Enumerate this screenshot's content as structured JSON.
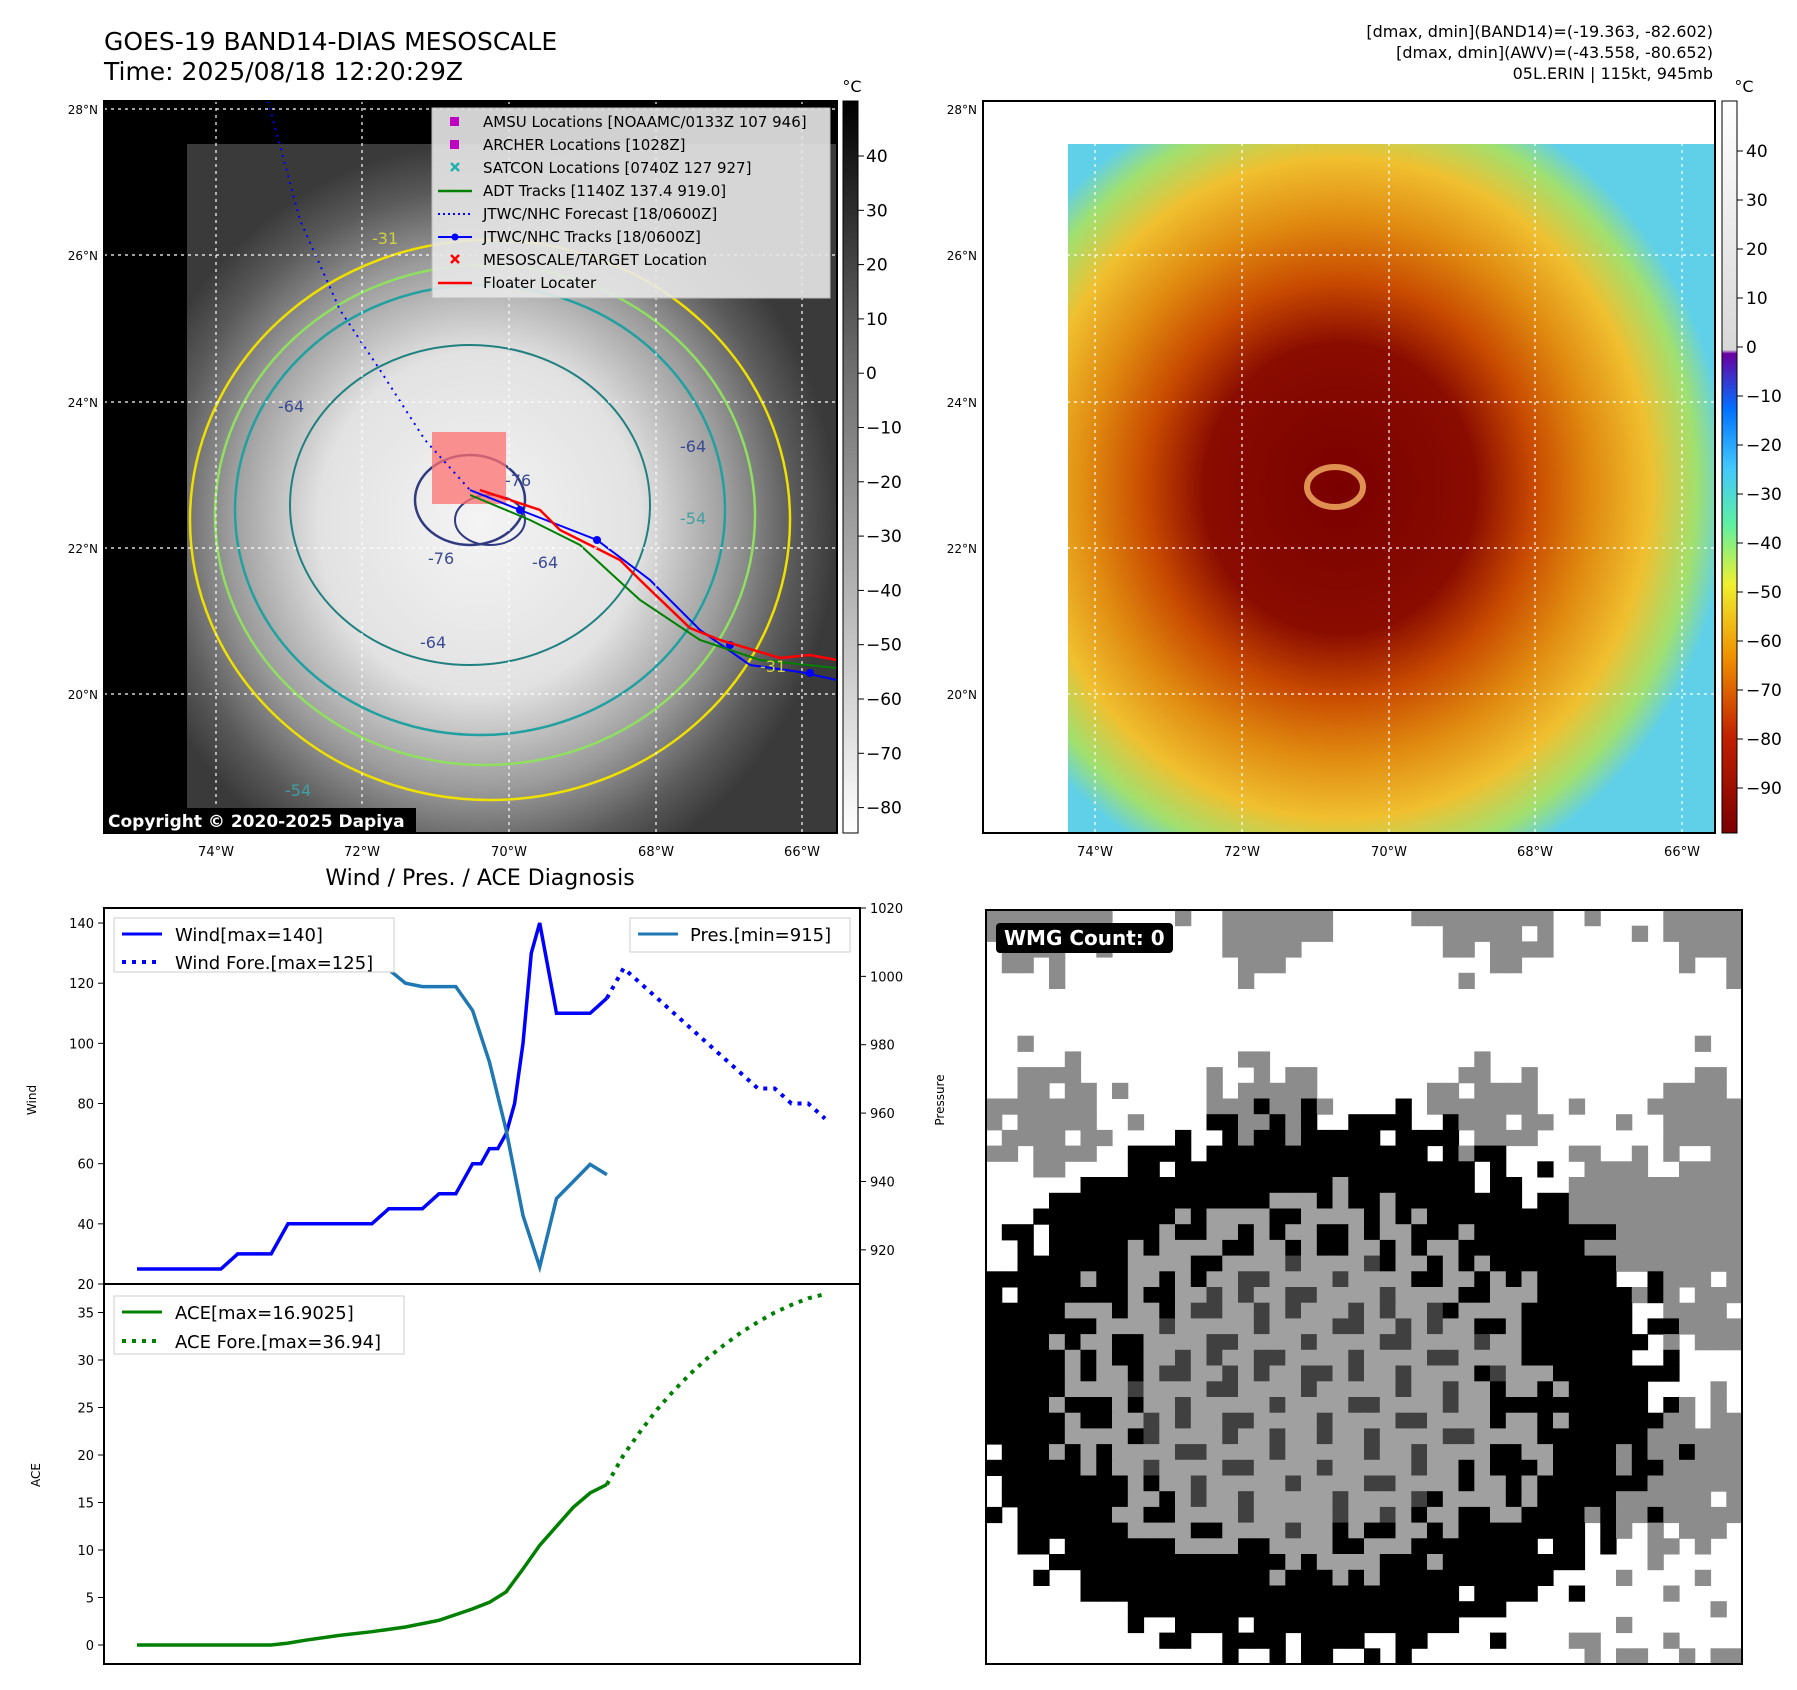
{
  "header": {
    "title": "GOES-19 BAND14-DIAS MESOSCALE",
    "time": "Time: 2025/08/18 12:20:29Z",
    "dmax_band14": "[dmax, dmin](BAND14)=(-19.363, -82.602)",
    "dmax_awv": "[dmax, dmin](AWV)=(-43.558, -80.652)",
    "storm": "05L.ERIN | 115kt, 945mb"
  },
  "map_left": {
    "copyright": "Copyright © 2020-2025 Dapiya",
    "lat_labels": [
      "28°N",
      "26°N",
      "24°N",
      "22°N",
      "20°N"
    ],
    "lon_labels": [
      "74°W",
      "72°W",
      "70°W",
      "68°W",
      "66°W"
    ],
    "contour_labels": [
      "-31",
      "-64",
      "-76",
      "-64",
      "-54",
      "-64",
      "-76",
      "-64",
      "-54",
      "-31"
    ],
    "legend": [
      {
        "label": "AMSU Locations [NOAAMC/0133Z 107 946]",
        "color": "#c000c0",
        "kind": "square"
      },
      {
        "label": "ARCHER Locations [1028Z]",
        "color": "#c000c0",
        "kind": "square"
      },
      {
        "label": "SATCON Locations [0740Z 127 927]",
        "color": "#20b0b0",
        "kind": "x"
      },
      {
        "label": "ADT Tracks [1140Z 137.4 919.0]",
        "color": "#008000",
        "kind": "line"
      },
      {
        "label": "JTWC/NHC Forecast [18/0600Z]",
        "color": "#0000ff",
        "kind": "dotted"
      },
      {
        "label": "JTWC/NHC Tracks [18/0600Z]",
        "color": "#0000ff",
        "kind": "linedot"
      },
      {
        "label": "MESOSCALE/TARGET Location",
        "color": "#ff0000",
        "kind": "x"
      },
      {
        "label": "Floater Locater",
        "color": "#ff0000",
        "kind": "line"
      }
    ],
    "colorbar": {
      "unit": "°C",
      "ticks": [
        "40",
        "30",
        "20",
        "10",
        "0",
        "−10",
        "−20",
        "−30",
        "−40",
        "−50",
        "−60",
        "−70",
        "−80"
      ]
    }
  },
  "map_right": {
    "lat_labels": [
      "28°N",
      "26°N",
      "24°N",
      "22°N",
      "20°N"
    ],
    "lon_labels": [
      "74°W",
      "72°W",
      "70°W",
      "68°W",
      "66°W"
    ],
    "colorbar": {
      "unit": "°C",
      "ticks": [
        "40",
        "30",
        "20",
        "10",
        "0",
        "−10",
        "−20",
        "−30",
        "−40",
        "−50",
        "−60",
        "−70",
        "−80",
        "−90"
      ]
    }
  },
  "wind_panel": {
    "title": "Wind / Pres. / ACE Diagnosis",
    "wind_ylabel": "Wind",
    "pres_ylabel": "Pressure",
    "ace_ylabel": "ACE",
    "legend_wind": "Wind[max=140]",
    "legend_wind_fore": "Wind Fore.[max=125]",
    "legend_pres": "Pres.[min=915]",
    "legend_ace": "ACE[max=16.9025]",
    "legend_ace_fore": "ACE Fore.[max=36.94]",
    "wind_ticks": [
      "140",
      "120",
      "100",
      "80",
      "60",
      "40",
      "20"
    ],
    "pres_ticks": [
      "1020",
      "1000",
      "980",
      "960",
      "940",
      "920"
    ],
    "ace_ticks": [
      "35",
      "30",
      "25",
      "20",
      "15",
      "10",
      "5",
      "0"
    ]
  },
  "wmg": {
    "badge": "WMG Count: 0"
  },
  "chart_data": [
    {
      "type": "line",
      "title": "Wind / Pres. / ACE Diagnosis",
      "ylabel": "Wind",
      "ylim": [
        20,
        145
      ],
      "series": [
        {
          "name": "Wind[max=140]",
          "style": "solid",
          "color": "#0000ff",
          "x": [
            0,
            2,
            3,
            4,
            5,
            6,
            7,
            8,
            9,
            10,
            11,
            12,
            13,
            14,
            15,
            16,
            17,
            18,
            19,
            20,
            20.5,
            21,
            21.5,
            22,
            22.5,
            23,
            23.5,
            24,
            25,
            26,
            27,
            28
          ],
          "y": [
            25,
            25,
            25,
            25,
            25,
            30,
            30,
            30,
            40,
            40,
            40,
            40,
            40,
            40,
            45,
            45,
            45,
            50,
            50,
            60,
            60,
            65,
            65,
            70,
            80,
            100,
            130,
            140,
            110,
            110,
            110,
            115
          ]
        },
        {
          "name": "Wind Fore.[max=125]",
          "style": "dotted",
          "color": "#0000ff",
          "x": [
            28,
            29,
            30,
            31,
            32,
            33,
            34,
            35,
            36,
            37,
            38,
            39,
            40,
            41
          ],
          "y": [
            115,
            125,
            120,
            115,
            110,
            105,
            100,
            95,
            90,
            85,
            85,
            80,
            80,
            75
          ]
        }
      ]
    },
    {
      "type": "line",
      "ylabel": "Pressure",
      "ylim": [
        910,
        1020
      ],
      "series": [
        {
          "name": "Pres.[min=915]",
          "style": "solid",
          "color": "#1f77b4",
          "x": [
            0,
            1,
            2,
            3,
            4,
            5,
            6,
            7,
            8,
            9,
            10,
            11,
            12,
            13,
            14,
            15,
            16,
            17,
            18,
            19,
            20,
            21,
            22,
            23,
            24,
            25,
            26,
            27,
            28
          ],
          "y": [
            1014,
            1014,
            1008,
            1006,
            1006,
            1006,
            1006,
            1005,
            1004,
            1004,
            1004,
            1002,
            1002,
            1002,
            1002,
            1002,
            998,
            997,
            997,
            997,
            990,
            975,
            955,
            930,
            915,
            935,
            940,
            945,
            942
          ]
        }
      ]
    },
    {
      "type": "line",
      "ylabel": "ACE",
      "ylim": [
        -2,
        38
      ],
      "series": [
        {
          "name": "ACE[max=16.9025]",
          "style": "solid",
          "color": "#008000",
          "x": [
            0,
            2,
            4,
            6,
            8,
            9,
            10,
            12,
            14,
            16,
            18,
            19,
            20,
            21,
            22,
            23,
            24,
            25,
            26,
            27,
            28
          ],
          "y": [
            0,
            0,
            0,
            0,
            0,
            0.2,
            0.5,
            1.0,
            1.4,
            1.9,
            2.6,
            3.2,
            3.8,
            4.5,
            5.6,
            8,
            10.5,
            12.5,
            14.5,
            16,
            16.9
          ]
        },
        {
          "name": "ACE Fore.[max=36.94]",
          "style": "dotted",
          "color": "#008000",
          "x": [
            28,
            29,
            30,
            31,
            32,
            33,
            34,
            35,
            36,
            37,
            38,
            39,
            40,
            41
          ],
          "y": [
            16.9,
            20,
            22.5,
            24.8,
            26.8,
            28.6,
            30.2,
            31.6,
            32.9,
            34,
            35,
            35.8,
            36.5,
            36.94
          ]
        }
      ]
    }
  ]
}
